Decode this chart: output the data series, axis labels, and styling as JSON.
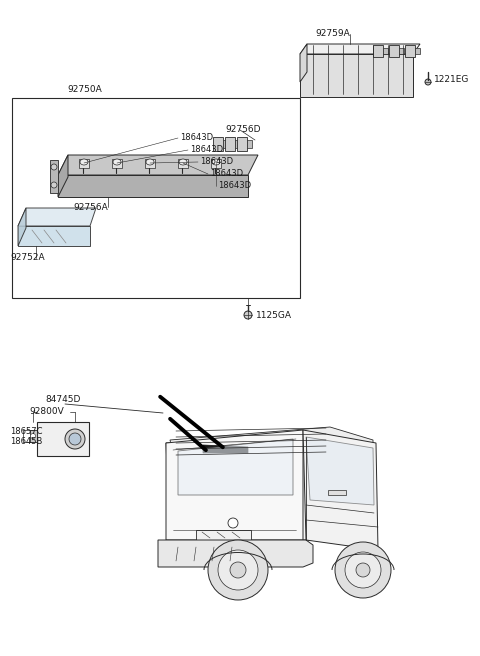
{
  "bg_color": "#ffffff",
  "line_color": "#2a2a2a",
  "text_color": "#1a1a1a",
  "parts": {
    "upper_box_label": "92750A",
    "lamp_assembly_label": "92756A",
    "lens_label": "92752A",
    "bulb_labels": [
      "18643D",
      "18643D",
      "18643D",
      "18643D",
      "18643D"
    ],
    "socket_label": "92756D",
    "housing_upper_label": "92759A",
    "bolt_label": "1221EG",
    "screw_label": "1125GA",
    "camera_assy_label": "92800V",
    "camera_connector1": "18657C",
    "camera_connector2": "18645B",
    "camera_bracket_label": "84745D"
  }
}
